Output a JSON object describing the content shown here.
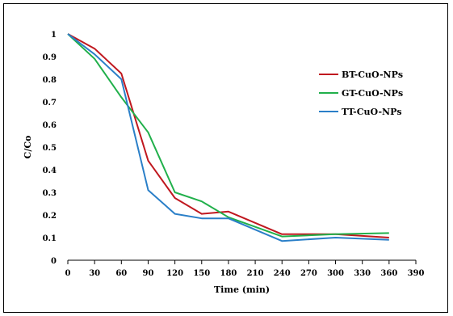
{
  "chart_data": {
    "type": "line",
    "title": "",
    "xlabel": "Time (min)",
    "ylabel": "C/Co",
    "xlim": [
      0,
      390
    ],
    "ylim": [
      0,
      1
    ],
    "x_ticks": [
      "0",
      "30",
      "60",
      "90",
      "120",
      "150",
      "180",
      "210",
      "240",
      "270",
      "300",
      "330",
      "360",
      "390"
    ],
    "y_ticks": [
      "0",
      "0.1",
      "0.2",
      "0.3",
      "0.4",
      "0.5",
      "0.6",
      "0.7",
      "0.8",
      "0.9",
      "1"
    ],
    "grid": false,
    "legend_position": "top-right",
    "series": [
      {
        "name": "BT-CuO-NPs",
        "color": "#c0181f",
        "x": [
          0,
          30,
          60,
          90,
          120,
          150,
          180,
          240,
          300,
          360
        ],
        "y": [
          1.0,
          0.935,
          0.825,
          0.44,
          0.275,
          0.205,
          0.215,
          0.115,
          0.115,
          0.1
        ]
      },
      {
        "name": "GT-CuO-NPs",
        "color": "#21b04b",
        "x": [
          0,
          30,
          60,
          90,
          120,
          150,
          180,
          240,
          300,
          360
        ],
        "y": [
          1.0,
          0.89,
          0.72,
          0.565,
          0.3,
          0.26,
          0.19,
          0.105,
          0.115,
          0.12
        ]
      },
      {
        "name": "TT-CuO-NPs",
        "color": "#2a7fc8",
        "x": [
          0,
          30,
          60,
          90,
          120,
          150,
          180,
          240,
          300,
          360
        ],
        "y": [
          1.0,
          0.91,
          0.8,
          0.31,
          0.205,
          0.185,
          0.185,
          0.085,
          0.1,
          0.09
        ]
      }
    ]
  }
}
